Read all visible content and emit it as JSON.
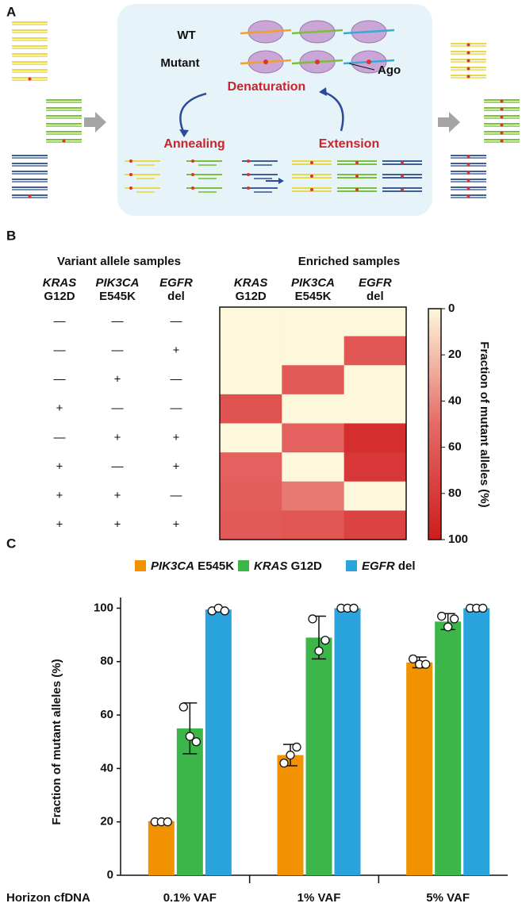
{
  "figure": {
    "letters": {
      "a": "A",
      "b": "B",
      "c": "C"
    },
    "diagram": {
      "wt": "WT",
      "mutant": "Mutant",
      "ago": "Ago",
      "denaturation": "Denaturation",
      "annealing": "Annealing",
      "extension": "Extension"
    },
    "variant_table": {
      "title": "Variant allele samples",
      "columns": [
        {
          "gene": "KRAS",
          "variant": "G12D"
        },
        {
          "gene": "PIK3CA",
          "variant": "E545K"
        },
        {
          "gene": "EGFR",
          "variant": "del"
        }
      ],
      "rows": [
        [
          "—",
          "—",
          "—"
        ],
        [
          "—",
          "—",
          "+"
        ],
        [
          "—",
          "+",
          "—"
        ],
        [
          "+",
          "—",
          "—"
        ],
        [
          "—",
          "+",
          "+"
        ],
        [
          "+",
          "—",
          "+"
        ],
        [
          "+",
          "+",
          "—"
        ],
        [
          "+",
          "+",
          "+"
        ]
      ]
    }
  },
  "chart_data": [
    {
      "type": "heatmap",
      "title": "Enriched samples",
      "columns": [
        {
          "gene": "KRAS",
          "variant": "G12D"
        },
        {
          "gene": "PIK3CA",
          "variant": "E545K"
        },
        {
          "gene": "EGFR",
          "variant": "del"
        }
      ],
      "values": [
        [
          0,
          0,
          0
        ],
        [
          0,
          0,
          62
        ],
        [
          0,
          60,
          0
        ],
        [
          65,
          0,
          0
        ],
        [
          0,
          55,
          88
        ],
        [
          55,
          0,
          82
        ],
        [
          58,
          45,
          0
        ],
        [
          60,
          62,
          75
        ]
      ],
      "colormap": [
        "#fdf7dc",
        "#e56a66",
        "#cf1c1c"
      ],
      "colorbar": {
        "label": "Fraction of mutant alleles (%)",
        "lim": [
          0,
          100
        ],
        "ticks": [
          0,
          20,
          40,
          60,
          80,
          100
        ]
      }
    },
    {
      "type": "bar",
      "xlabel": "Horizon cfDNA",
      "ylabel": "Fraction of mutant alleles (%)",
      "categories": [
        "0.1% VAF",
        "1% VAF",
        "5% VAF"
      ],
      "ylim": [
        0,
        104
      ],
      "yticks": [
        0,
        20,
        40,
        60,
        80,
        100
      ],
      "legend": "top",
      "series": [
        {
          "name": "PIK3CA E545K",
          "color": "#f39200",
          "values": [
            20.3,
            45,
            79.7
          ],
          "errors": [
            0.5,
            4,
            2
          ],
          "points": [
            [
              20,
              20,
              20
            ],
            [
              42,
              45,
              48
            ],
            [
              81,
              79,
              79
            ]
          ]
        },
        {
          "name": "KRAS G12D",
          "color": "#3cb54a",
          "values": [
            55,
            89,
            95
          ],
          "errors": [
            9.5,
            8,
            3
          ],
          "points": [
            [
              63,
              52,
              50
            ],
            [
              96,
              84,
              88
            ],
            [
              97,
              93,
              96
            ]
          ]
        },
        {
          "name": "EGFR del",
          "color": "#2ba3dc",
          "values": [
            99.5,
            100,
            100
          ],
          "errors": [
            0.5,
            0,
            0
          ],
          "points": [
            [
              99,
              100,
              99
            ],
            [
              100,
              100,
              100
            ],
            [
              100,
              100,
              100
            ]
          ]
        }
      ]
    }
  ]
}
